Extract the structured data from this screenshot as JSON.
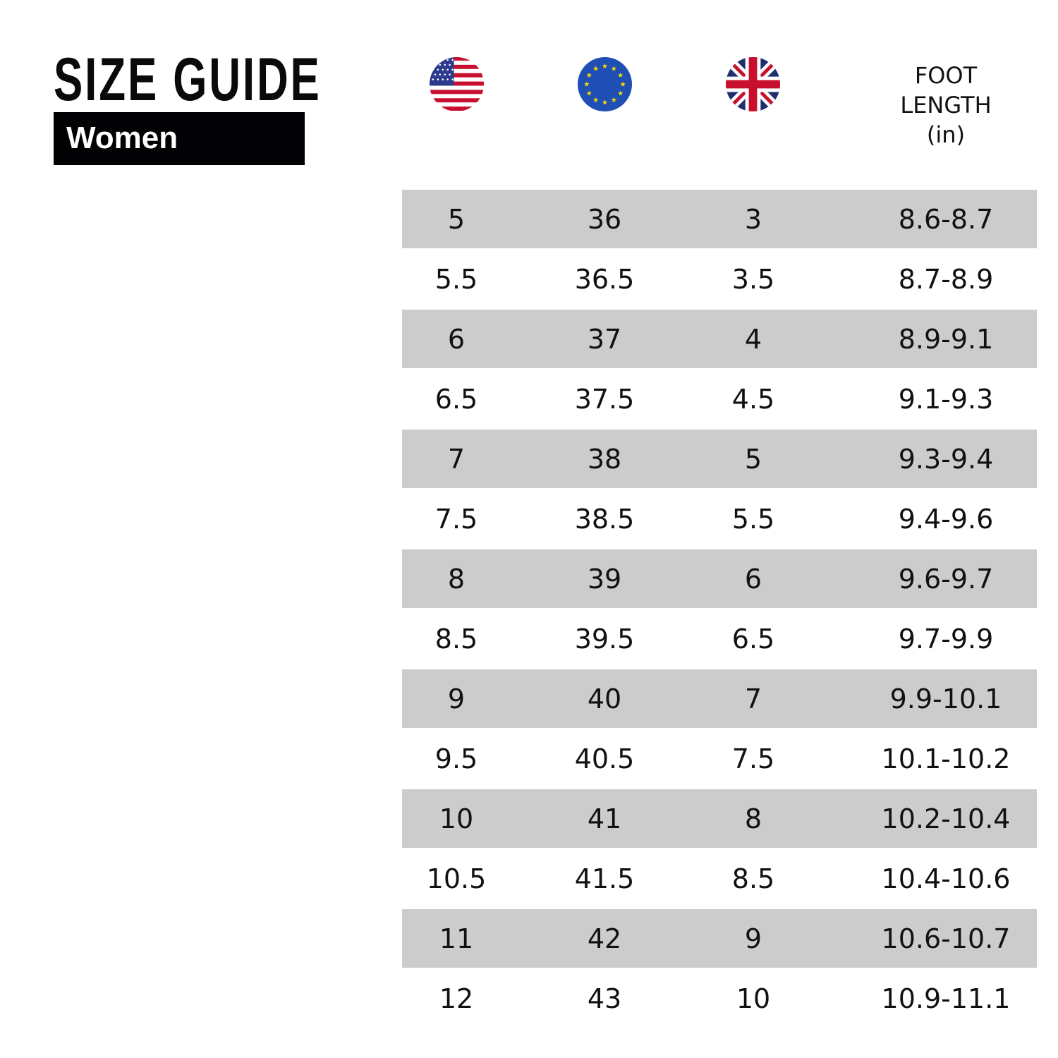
{
  "header": {
    "title": "SIZE GUIDE",
    "category": "Women"
  },
  "columns": [
    {
      "flag": "us-flag-icon",
      "label": ""
    },
    {
      "flag": "eu-flag-icon",
      "label": ""
    },
    {
      "flag": "uk-flag-icon",
      "label": ""
    },
    {
      "label_lines": [
        "FOOT",
        "LENGTH",
        "(in)"
      ]
    }
  ],
  "colors": {
    "row_shade": "#cccccc",
    "badge_bg": "#020205",
    "text": "#111111"
  },
  "rows": [
    [
      "5",
      "36",
      "3",
      "8.6-8.7"
    ],
    [
      "5.5",
      "36.5",
      "3.5",
      "8.7-8.9"
    ],
    [
      "6",
      "37",
      "4",
      "8.9-9.1"
    ],
    [
      "6.5",
      "37.5",
      "4.5",
      "9.1-9.3"
    ],
    [
      "7",
      "38",
      "5",
      "9.3-9.4"
    ],
    [
      "7.5",
      "38.5",
      "5.5",
      "9.4-9.6"
    ],
    [
      "8",
      "39",
      "6",
      "9.6-9.7"
    ],
    [
      "8.5",
      "39.5",
      "6.5",
      "9.7-9.9"
    ],
    [
      "9",
      "40",
      "7",
      "9.9-10.1"
    ],
    [
      "9.5",
      "40.5",
      "7.5",
      "10.1-10.2"
    ],
    [
      "10",
      "41",
      "8",
      "10.2-10.4"
    ],
    [
      "10.5",
      "41.5",
      "8.5",
      "10.4-10.6"
    ],
    [
      "11",
      "42",
      "9",
      "10.6-10.7"
    ],
    [
      "12",
      "43",
      "10",
      "10.9-11.1"
    ]
  ]
}
